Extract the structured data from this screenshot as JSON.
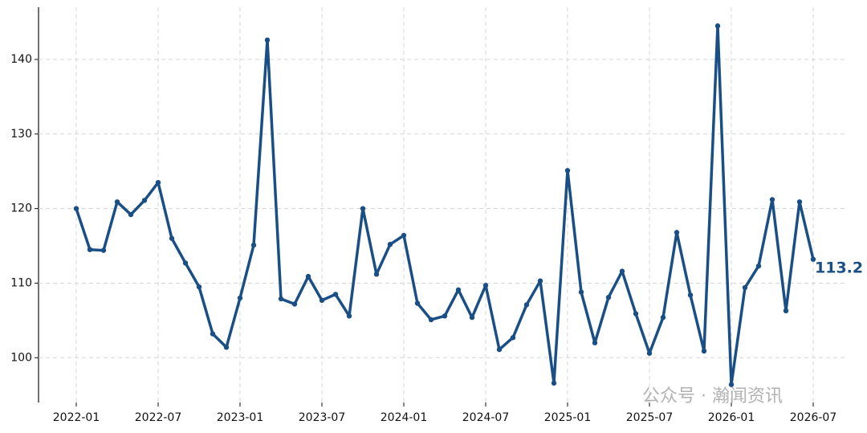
{
  "chart_data": {
    "type": "line",
    "categories": [
      "2022-01",
      null,
      null,
      null,
      null,
      null,
      "2022-07",
      null,
      null,
      null,
      null,
      null,
      "2023-01",
      null,
      null,
      null,
      null,
      null,
      "2023-07",
      null,
      null,
      null,
      null,
      null,
      "2024-01",
      null,
      null,
      null,
      null,
      null,
      "2024-07",
      null,
      null,
      null,
      null,
      null,
      "2025-01",
      null,
      null,
      null,
      null,
      null,
      "2025-07",
      null,
      null,
      null,
      null,
      null,
      "2026-01",
      null,
      null,
      null,
      null,
      null,
      "2026-07"
    ],
    "series": [
      {
        "color": "#1a4f85",
        "values": [
          120.0,
          114.5,
          114.4,
          120.9,
          119.2,
          121.1,
          123.5,
          116.0,
          112.7,
          109.5,
          103.2,
          101.4,
          108.0,
          115.1,
          142.6,
          107.9,
          107.2,
          110.9,
          107.7,
          108.5,
          105.6,
          120.0,
          111.2,
          115.2,
          116.4,
          107.3,
          105.1,
          105.6,
          109.1,
          105.4,
          109.7,
          101.1,
          102.7,
          107.1,
          110.3,
          96.6,
          125.1,
          108.8,
          102.0,
          108.1,
          111.6,
          105.9,
          100.6,
          105.4,
          116.8,
          108.4,
          100.9,
          144.5,
          96.4,
          109.4,
          112.3,
          121.2,
          106.3,
          120.9,
          113.2
        ]
      }
    ],
    "ylim": [
      94,
      147
    ],
    "yticks": [
      100,
      110,
      120,
      130,
      140
    ],
    "grid": true,
    "watermark": "公众号 · 瀚闻资讯"
  }
}
